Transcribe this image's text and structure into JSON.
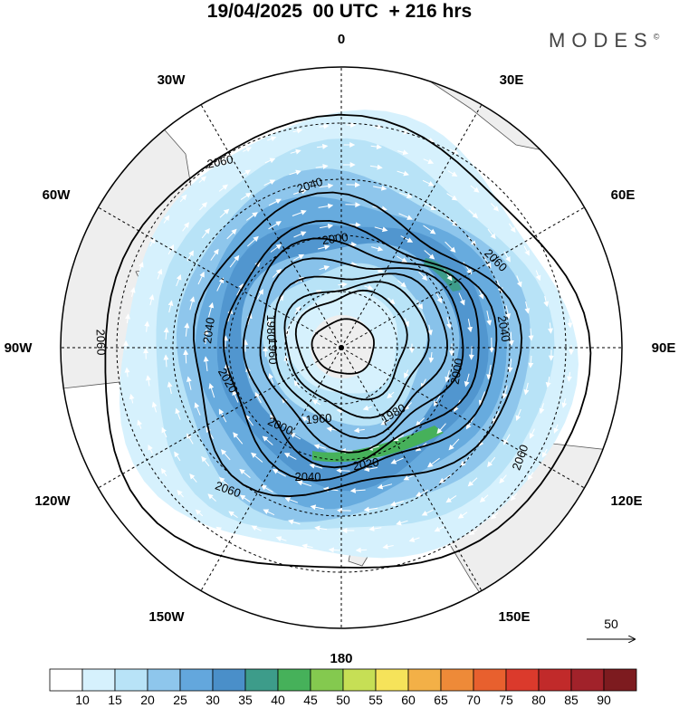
{
  "title": "19/04/2025  00 UTC  + 216 hrs",
  "brand": "MODES",
  "brand_mark": "©",
  "map": {
    "projection": "south-polar-stereographic",
    "meridian_labels": [
      "0",
      "30E",
      "60E",
      "90E",
      "120E",
      "150E",
      "180",
      "150W",
      "120W",
      "90W",
      "60W",
      "30W"
    ],
    "contour_labels": [
      "2060",
      "2040",
      "2000",
      "2060",
      "2040",
      "1980",
      "2060",
      "2020",
      "1980",
      "2000",
      "1960",
      "2020",
      "2040",
      "2060",
      "2000",
      "2060",
      "2040",
      "1960"
    ],
    "colors": {
      "land": "#eeeeee",
      "coast": "#555555",
      "grid": "#000000",
      "contour": "#000000",
      "arrow": "#ffffff"
    }
  },
  "vector_reference": {
    "label": "50"
  },
  "colorbar": {
    "labels": [
      "10",
      "15",
      "20",
      "25",
      "30",
      "35",
      "40",
      "45",
      "50",
      "55",
      "60",
      "65",
      "70",
      "75",
      "80",
      "85",
      "90"
    ],
    "colors": [
      "#ffffff",
      "#d6f1fd",
      "#b8e3f7",
      "#8ec6ec",
      "#63a7dd",
      "#4a8fc9",
      "#3d9c8a",
      "#46b15a",
      "#84c94f",
      "#c6df55",
      "#f6e35a",
      "#f3b047",
      "#ee8a38",
      "#e8602e",
      "#db3a2c",
      "#c12a2a",
      "#a1222a",
      "#7d1b1f"
    ]
  }
}
